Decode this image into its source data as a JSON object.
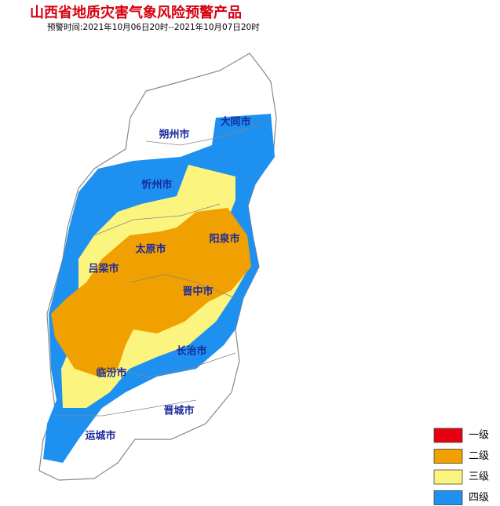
{
  "title": "山西省地质灾害气象风险预警产品",
  "subtitle": "预警时间:2021年10月06日20时--2021年10月07日20时",
  "cities": [
    {
      "label": "大同市"
    },
    {
      "label": "朔州市"
    },
    {
      "label": "忻州市"
    },
    {
      "label": "阳泉市"
    },
    {
      "label": "太原市"
    },
    {
      "label": "吕梁市"
    },
    {
      "label": "晋中市"
    },
    {
      "label": "长治市"
    },
    {
      "label": "临汾市"
    },
    {
      "label": "晋城市"
    },
    {
      "label": "运城市"
    }
  ],
  "legend": [
    {
      "label": "一级",
      "color": "#e60012"
    },
    {
      "label": "二级",
      "color": "#f0a000"
    },
    {
      "label": "三级",
      "color": "#fbf47f"
    },
    {
      "label": "四级",
      "color": "#1e90f0"
    }
  ]
}
